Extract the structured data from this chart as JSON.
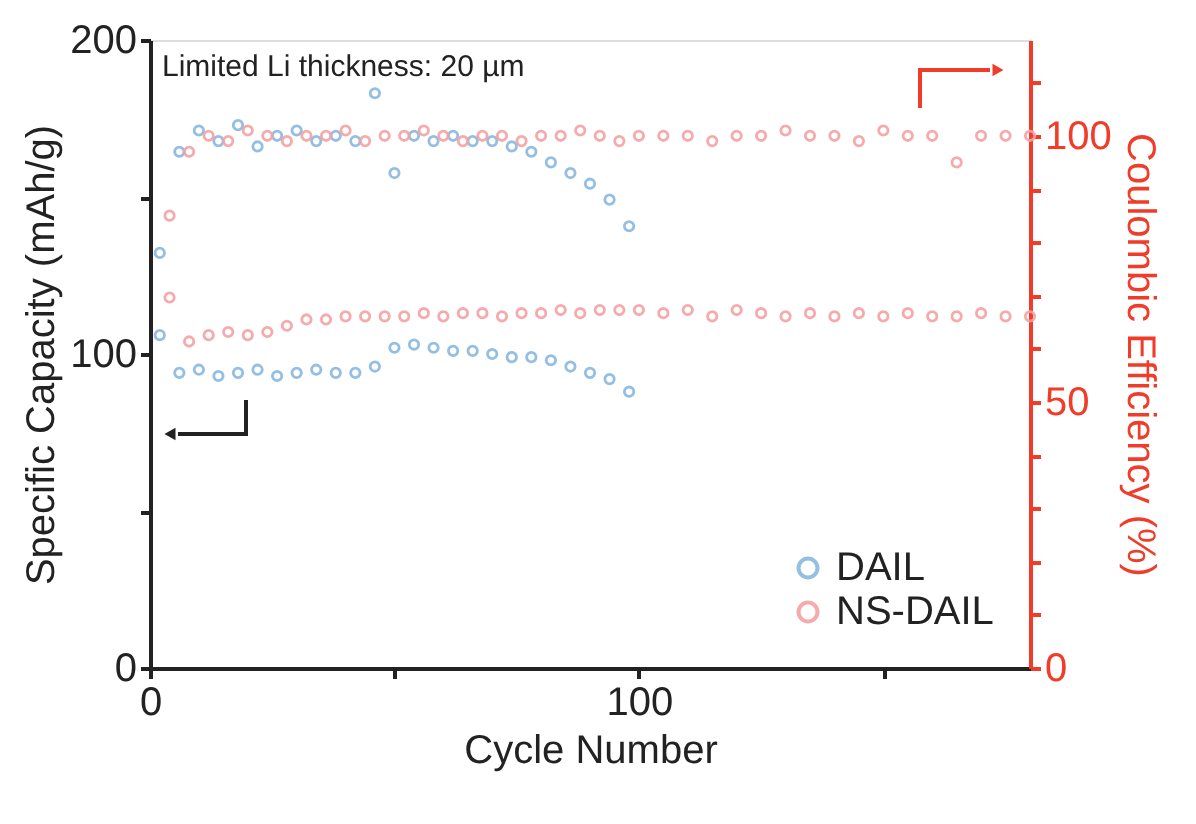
{
  "chart_data": {
    "type": "scatter",
    "xlabel": "Cycle Number",
    "ylabel": "Specific Capacity (mAh/g)",
    "y2label": "Coulombic Efficiency (%)",
    "annotations": [
      "Limited Li thickness: 20 µm"
    ],
    "xlim": [
      0,
      180
    ],
    "xticks": [
      0,
      {
        "value": 50,
        "label": null
      },
      100,
      {
        "value": 150,
        "label": null
      }
    ],
    "ylim": [
      0,
      200
    ],
    "yticks": [
      0,
      {
        "value": 50,
        "label": null
      },
      100,
      {
        "value": 150,
        "label": null
      },
      200
    ],
    "y2lim": [
      0,
      118
    ],
    "y2ticks": [
      0,
      {
        "value": 10,
        "label": null
      },
      {
        "value": 20,
        "label": null
      },
      {
        "value": 30,
        "label": null
      },
      {
        "value": 40,
        "label": null
      },
      50,
      {
        "value": 60,
        "label": null
      },
      {
        "value": 70,
        "label": null
      },
      {
        "value": 80,
        "label": null
      },
      {
        "value": 90,
        "label": null
      },
      100,
      {
        "value": 110,
        "label": null
      }
    ],
    "marker": "circle",
    "legend": "bottom right",
    "grid": false,
    "series": [
      {
        "name": "DAIL",
        "color": "#8ab8e0",
        "x": [
          2,
          6,
          10,
          14,
          18,
          22,
          26,
          30,
          34,
          38,
          42,
          46,
          50,
          54,
          58,
          62,
          66,
          70,
          74,
          78,
          82,
          86,
          90,
          94,
          98
        ],
        "values": [
          106,
          94,
          95,
          93,
          94,
          95,
          93,
          94,
          95,
          94,
          94,
          96,
          102,
          103,
          102,
          101,
          101,
          100,
          99,
          99,
          98,
          96,
          94,
          92,
          88
        ]
      },
      {
        "name": "NS-DAIL",
        "color": "#f4a3a3",
        "x": [
          4,
          8,
          12,
          16,
          20,
          24,
          28,
          32,
          36,
          40,
          44,
          48,
          52,
          56,
          60,
          64,
          68,
          72,
          76,
          80,
          84,
          88,
          92,
          96,
          100,
          105,
          110,
          115,
          120,
          125,
          130,
          135,
          140,
          145,
          150,
          155,
          160,
          165,
          170,
          175,
          180
        ],
        "values": [
          118,
          104,
          106,
          107,
          106,
          107,
          109,
          111,
          111,
          112,
          112,
          112,
          112,
          113,
          112,
          113,
          113,
          112,
          113,
          113,
          114,
          113,
          114,
          114,
          114,
          113,
          114,
          112,
          114,
          113,
          112,
          113,
          112,
          113,
          112,
          113,
          112,
          112,
          113,
          112,
          112
        ]
      },
      {
        "color": "#8ab8e0",
        "axis": "y2",
        "x": [
          2,
          6,
          10,
          14,
          18,
          22,
          26,
          30,
          34,
          38,
          42,
          46,
          50,
          54,
          58,
          62,
          66,
          70,
          74,
          78,
          82,
          86,
          90,
          94,
          98
        ],
        "values": [
          78,
          97,
          101,
          99,
          102,
          98,
          100,
          101,
          99,
          100,
          99,
          108,
          93,
          100,
          99,
          100,
          99,
          99,
          98,
          97,
          95,
          93,
          91,
          88,
          83
        ]
      },
      {
        "color": "#f4a3a3",
        "axis": "y2",
        "x": [
          4,
          8,
          12,
          16,
          20,
          24,
          28,
          32,
          36,
          40,
          44,
          48,
          52,
          56,
          60,
          64,
          68,
          72,
          76,
          80,
          84,
          88,
          92,
          96,
          100,
          105,
          110,
          115,
          120,
          125,
          130,
          135,
          140,
          145,
          150,
          155,
          160,
          165,
          170,
          175,
          180
        ],
        "values": [
          85,
          97,
          100,
          99,
          101,
          100,
          99,
          100,
          100,
          101,
          99,
          100,
          100,
          101,
          100,
          99,
          100,
          100,
          99,
          100,
          100,
          101,
          100,
          99,
          100,
          100,
          100,
          99,
          100,
          100,
          101,
          100,
          100,
          99,
          101,
          100,
          100,
          95,
          100,
          100,
          100
        ]
      }
    ]
  }
}
